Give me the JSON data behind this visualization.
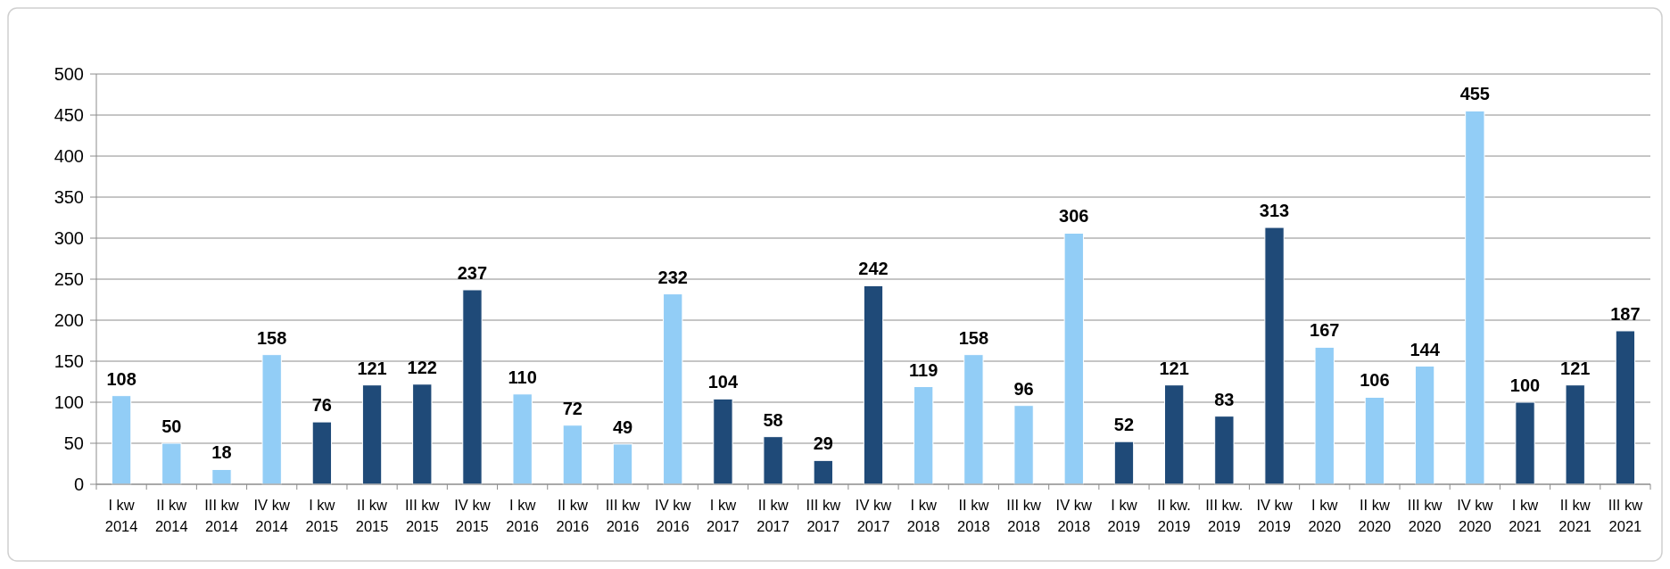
{
  "chart_data": {
    "type": "bar",
    "categories": [
      "I kw 2014",
      "II kw 2014",
      "III kw 2014",
      "IV kw 2014",
      "I kw 2015",
      "II kw 2015",
      "III kw 2015",
      "IV kw 2015",
      "I kw 2016",
      "II kw 2016",
      "III kw 2016",
      "IV kw 2016",
      "I kw 2017",
      "II kw 2017",
      "III kw 2017",
      "IV kw 2017",
      "I kw 2018",
      "II kw 2018",
      "III kw 2018",
      "IV kw 2018",
      "I kw 2019",
      "II kw. 2019",
      "III kw. 2019",
      "IV kw 2019",
      "I kw 2020",
      "II kw 2020",
      "III kw 2020",
      "IV kw 2020",
      "I kw 2021",
      "II kw 2021",
      "III kw 2021"
    ],
    "values": [
      108,
      50,
      18,
      158,
      76,
      121,
      122,
      237,
      110,
      72,
      49,
      232,
      104,
      58,
      29,
      242,
      119,
      158,
      96,
      306,
      52,
      121,
      83,
      313,
      167,
      106,
      144,
      455,
      100,
      121,
      187
    ],
    "colors": [
      "#92cdf6",
      "#92cdf6",
      "#92cdf6",
      "#92cdf6",
      "#1f4a78",
      "#1f4a78",
      "#1f4a78",
      "#1f4a78",
      "#92cdf6",
      "#92cdf6",
      "#92cdf6",
      "#92cdf6",
      "#1f4a78",
      "#1f4a78",
      "#1f4a78",
      "#1f4a78",
      "#92cdf6",
      "#92cdf6",
      "#92cdf6",
      "#92cdf6",
      "#1f4a78",
      "#1f4a78",
      "#1f4a78",
      "#1f4a78",
      "#92cdf6",
      "#92cdf6",
      "#92cdf6",
      "#92cdf6",
      "#1f4a78",
      "#1f4a78",
      "#1f4a78"
    ],
    "ylim": [
      0,
      500
    ],
    "yticks": [
      0,
      50,
      100,
      150,
      200,
      250,
      300,
      350,
      400,
      450,
      500
    ],
    "grid": "y",
    "data_labels": true
  }
}
